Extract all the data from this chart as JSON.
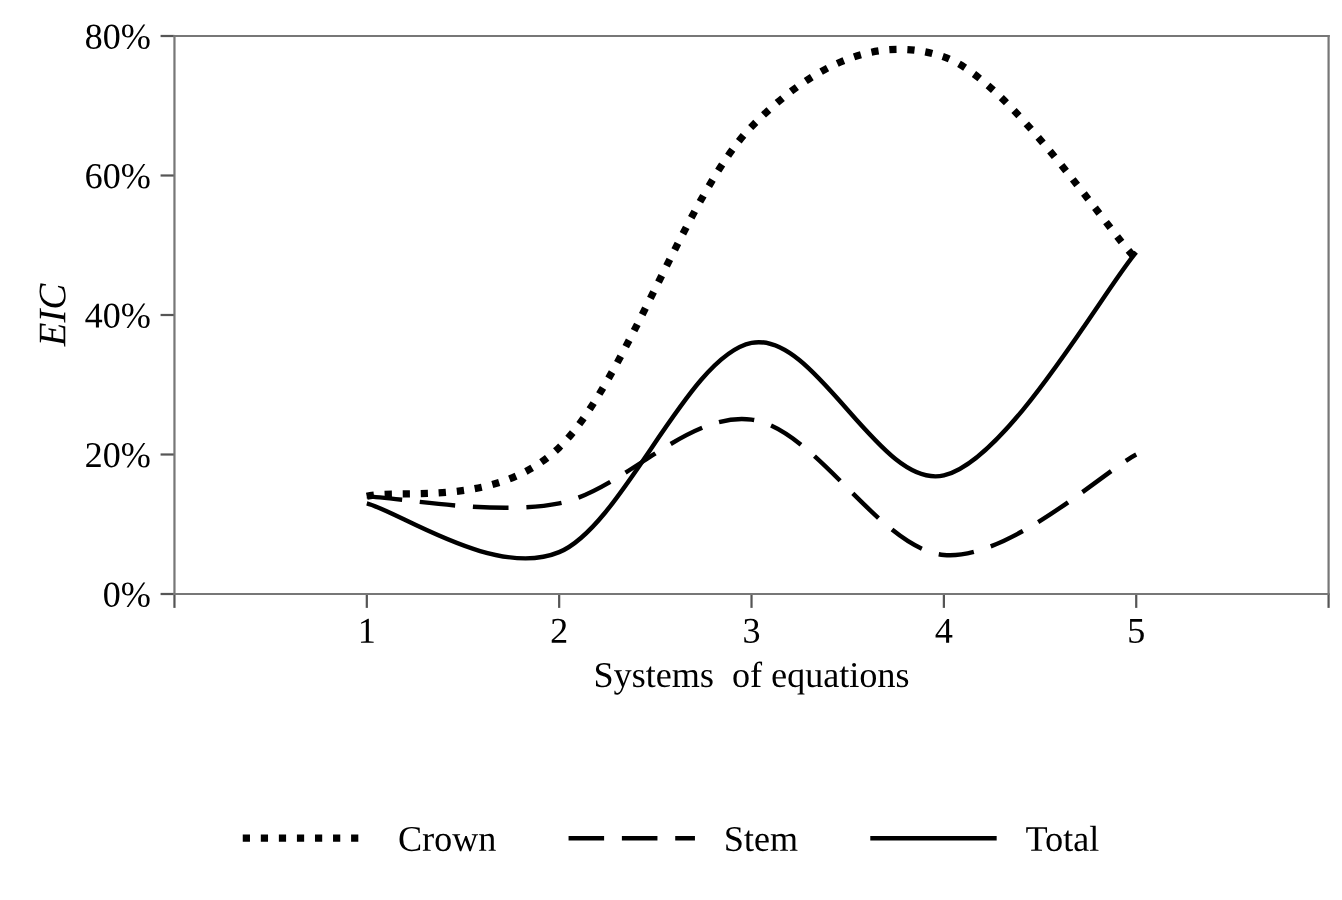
{
  "chart_data": {
    "type": "line",
    "xlabel": "Systems  of equations",
    "ylabel": "EIC",
    "x": [
      1,
      2,
      3,
      4,
      5
    ],
    "series": [
      {
        "name": "Crown",
        "color": "#000000",
        "line_style": "dotted",
        "values": [
          14,
          21,
          67,
          77,
          48
        ]
      },
      {
        "name": "Stem",
        "color": "#000000",
        "line_style": "dashed",
        "values": [
          14,
          13,
          25,
          5.6,
          20
        ]
      },
      {
        "name": "Total",
        "color": "#000000",
        "line_style": "solid",
        "values": [
          13,
          6,
          36,
          17,
          49
        ]
      }
    ],
    "xlim": [
      0,
      6
    ],
    "xticks": [
      {
        "value": 0,
        "label": null
      },
      1,
      2,
      3,
      4,
      5,
      {
        "value": 6,
        "label": null
      }
    ],
    "ylim": [
      0,
      80
    ],
    "yticks": [
      {
        "value": 0,
        "label": "0%"
      },
      {
        "value": 20,
        "label": "20%"
      },
      {
        "value": 40,
        "label": "40%"
      },
      {
        "value": 60,
        "label": "60%"
      },
      {
        "value": 80,
        "label": "80%"
      }
    ],
    "grid": false,
    "legend": "bottom",
    "marker": "none"
  }
}
